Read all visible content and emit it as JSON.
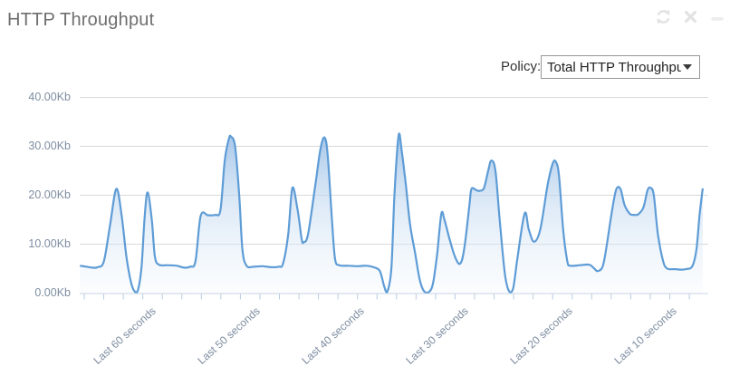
{
  "widget": {
    "title": "HTTP Throughput"
  },
  "toolbar": {
    "icons": [
      "refresh",
      "close",
      "minimize"
    ]
  },
  "policy": {
    "label": "Policy:",
    "selected_value": "Total HTTP Throughput"
  },
  "chart_data": {
    "type": "area",
    "title": "HTTP Throughput",
    "xlabel": "",
    "ylabel": "",
    "unit": "Kb",
    "ylim": [
      0,
      40
    ],
    "grid": true,
    "legend": "none",
    "y_ticks": [
      {
        "label": "40.00Kb",
        "value": 40
      },
      {
        "label": "30.00Kb",
        "value": 30
      },
      {
        "label": "20.00Kb",
        "value": 20
      },
      {
        "label": "10.00Kb",
        "value": 10
      },
      {
        "label": "0.00Kb",
        "value": 0
      }
    ],
    "x_ticks": [
      {
        "label": "Last 60 seconds",
        "seconds_ago": 60
      },
      {
        "label": "Last 50 seconds",
        "seconds_ago": 50
      },
      {
        "label": "Last 40 seconds",
        "seconds_ago": 40
      },
      {
        "label": "Last 30 seconds",
        "seconds_ago": 30
      },
      {
        "label": "Last 20 seconds",
        "seconds_ago": 20
      },
      {
        "label": "Last 10 seconds",
        "seconds_ago": 10
      }
    ],
    "series": [
      {
        "name": "Total HTTP Throughput",
        "points_format": [
          "seconds_ago",
          "kb"
        ],
        "points": [
          [
            63.2,
            5.6
          ],
          [
            62.6,
            5.4
          ],
          [
            62.0,
            5.2
          ],
          [
            61.5,
            5.3
          ],
          [
            60.9,
            6.5
          ],
          [
            60.3,
            14
          ],
          [
            59.7,
            21.3
          ],
          [
            59.2,
            16
          ],
          [
            58.7,
            7
          ],
          [
            58.2,
            1.5
          ],
          [
            57.7,
            0.2
          ],
          [
            57.3,
            5
          ],
          [
            57.0,
            15
          ],
          [
            56.7,
            20.6
          ],
          [
            56.3,
            15
          ],
          [
            56.0,
            7.5
          ],
          [
            55.6,
            5.8
          ],
          [
            54.8,
            5.7
          ],
          [
            53.9,
            5.6
          ],
          [
            53.2,
            5.2
          ],
          [
            52.6,
            5.4
          ],
          [
            52.1,
            6.5
          ],
          [
            51.6,
            15.8
          ],
          [
            50.9,
            15.9
          ],
          [
            50.2,
            16.0
          ],
          [
            49.7,
            17
          ],
          [
            49.3,
            27
          ],
          [
            48.9,
            31.5
          ],
          [
            48.7,
            32.0
          ],
          [
            48.3,
            30
          ],
          [
            47.9,
            20
          ],
          [
            47.6,
            9
          ],
          [
            47.2,
            5.6
          ],
          [
            46.5,
            5.4
          ],
          [
            45.7,
            5.5
          ],
          [
            44.8,
            5.3
          ],
          [
            44.1,
            5.4
          ],
          [
            43.7,
            6
          ],
          [
            43.2,
            12
          ],
          [
            42.8,
            21.5
          ],
          [
            42.3,
            17
          ],
          [
            41.9,
            11
          ],
          [
            41.7,
            10.4
          ],
          [
            41.3,
            12
          ],
          [
            40.6,
            22
          ],
          [
            40.1,
            29.5
          ],
          [
            39.7,
            31.8
          ],
          [
            39.4,
            28
          ],
          [
            39.0,
            15
          ],
          [
            38.7,
            7
          ],
          [
            38.3,
            5.7
          ],
          [
            37.4,
            5.6
          ],
          [
            36.5,
            5.5
          ],
          [
            35.7,
            5.6
          ],
          [
            35.0,
            5.3
          ],
          [
            34.4,
            4.5
          ],
          [
            34.0,
            1.5
          ],
          [
            33.7,
            0.2
          ],
          [
            33.3,
            5
          ],
          [
            33.0,
            20
          ],
          [
            32.6,
            32.2
          ],
          [
            32.3,
            29
          ],
          [
            31.9,
            22
          ],
          [
            31.5,
            14
          ],
          [
            31.0,
            8
          ],
          [
            30.6,
            3
          ],
          [
            30.2,
            0.5
          ],
          [
            29.7,
            0.2
          ],
          [
            29.3,
            2
          ],
          [
            28.9,
            8
          ],
          [
            28.5,
            16.2
          ],
          [
            28.2,
            15
          ],
          [
            27.7,
            11
          ],
          [
            27.2,
            7.5
          ],
          [
            26.7,
            6.0
          ],
          [
            26.3,
            9
          ],
          [
            25.8,
            18
          ],
          [
            25.6,
            21.3
          ],
          [
            25.1,
            21.0
          ],
          [
            24.8,
            20.9
          ],
          [
            24.4,
            21.5
          ],
          [
            24.0,
            25
          ],
          [
            23.7,
            27.1
          ],
          [
            23.3,
            25
          ],
          [
            22.9,
            15
          ],
          [
            22.4,
            4
          ],
          [
            22.0,
            0.4
          ],
          [
            21.6,
            1
          ],
          [
            21.2,
            7
          ],
          [
            20.5,
            16.3
          ],
          [
            20.1,
            13
          ],
          [
            19.6,
            10.5
          ],
          [
            19.0,
            13
          ],
          [
            18.3,
            22
          ],
          [
            17.8,
            26.5
          ],
          [
            17.5,
            26.8
          ],
          [
            17.2,
            24
          ],
          [
            16.8,
            13
          ],
          [
            16.4,
            6.5
          ],
          [
            16.1,
            5.6
          ],
          [
            15.2,
            5.7
          ],
          [
            14.3,
            5.8
          ],
          [
            13.8,
            5.0
          ],
          [
            13.5,
            4.5
          ],
          [
            13.0,
            5.5
          ],
          [
            12.6,
            10
          ],
          [
            12.1,
            17
          ],
          [
            11.7,
            21.2
          ],
          [
            11.3,
            21.3
          ],
          [
            10.9,
            18
          ],
          [
            10.4,
            16.2
          ],
          [
            10.0,
            16.0
          ],
          [
            9.6,
            16.1
          ],
          [
            9.1,
            17.5
          ],
          [
            8.7,
            21.0
          ],
          [
            8.4,
            21.5
          ],
          [
            8.1,
            20
          ],
          [
            7.7,
            12
          ],
          [
            7.2,
            6.5
          ],
          [
            6.8,
            5.0
          ],
          [
            6.1,
            4.9
          ],
          [
            5.5,
            4.8
          ],
          [
            5.0,
            4.9
          ],
          [
            4.4,
            5.5
          ],
          [
            4.0,
            9
          ],
          [
            3.7,
            16
          ],
          [
            3.4,
            21.4
          ]
        ]
      }
    ],
    "colors": {
      "line": "#5e9cd6",
      "fill_top": "#79aade",
      "fill_mid": "#c3d9f0",
      "fill_bottom": "#f4f9fd",
      "grid": "#d9d9d9",
      "axis": "#c7d4e4",
      "tick": "#b9cbe0",
      "tick_label": "#7e8da1"
    }
  }
}
